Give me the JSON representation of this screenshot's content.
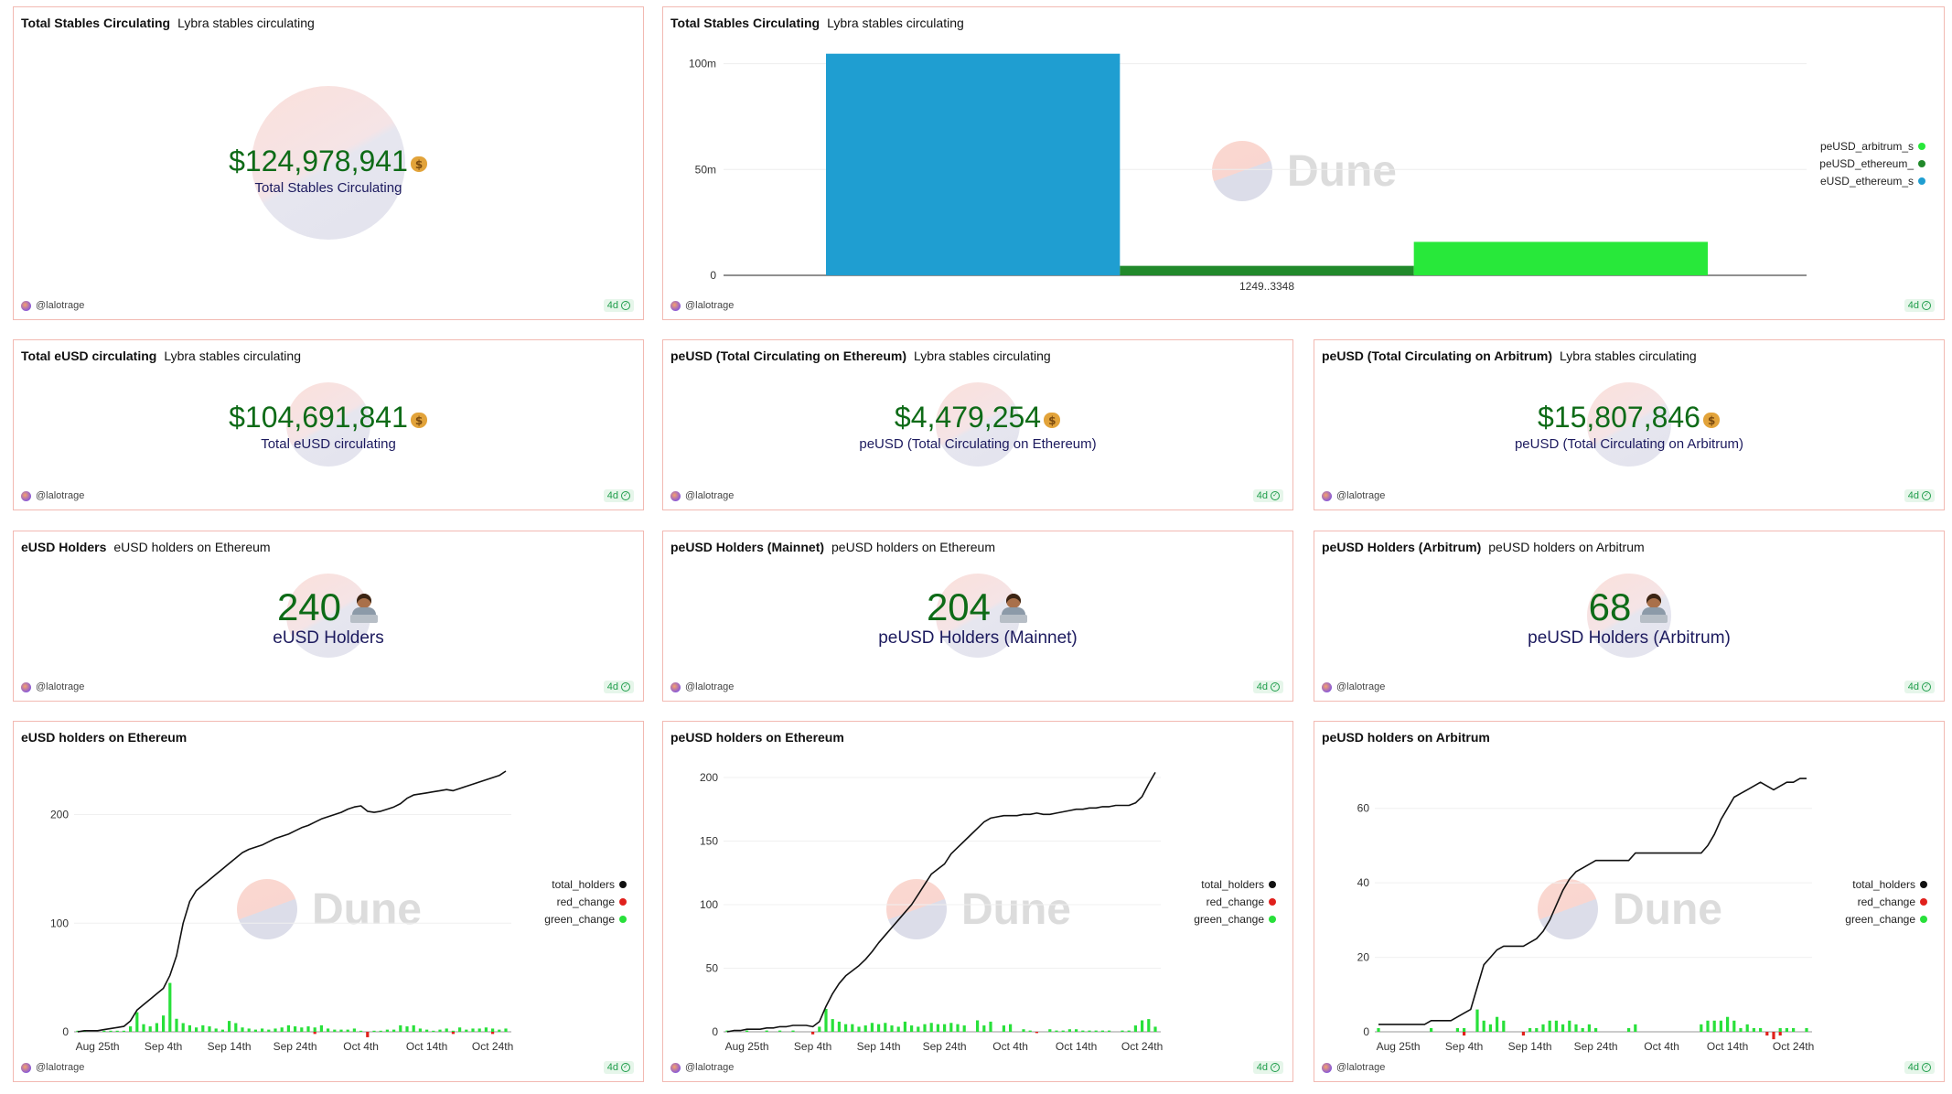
{
  "author": "@lalotrage",
  "freshness": "4d",
  "colors": {
    "green_value": "#0e6b17",
    "navy_label": "#1c1a5e",
    "card_border": "#f2b9b2",
    "line_black": "#111111",
    "bar_green": "#28e03a",
    "bar_red": "#e0201c",
    "eusd_blue": "#1f9ed1",
    "peusd_eth_green": "#21892b",
    "peusd_arb_green": "#28e83a"
  },
  "watermark": "Dune",
  "cards": {
    "total_stables": {
      "title": "Total Stables Circulating",
      "subtitle": "Lybra stables circulating",
      "value": "$124,978,941",
      "label": "Total Stables Circulating",
      "icon": "money-bag-icon"
    },
    "total_stables_bar": {
      "title": "Total Stables Circulating",
      "subtitle": "Lybra stables circulating"
    },
    "total_eusd": {
      "title": "Total eUSD circulating",
      "subtitle": "Lybra stables circulating",
      "value": "$104,691,841",
      "label": "Total eUSD circulating",
      "icon": "money-bag-icon"
    },
    "peusd_eth": {
      "title": "peUSD (Total Circulating on Ethereum)",
      "subtitle": "Lybra stables circulating",
      "value": "$4,479,254",
      "label": "peUSD (Total Circulating on Ethereum)",
      "icon": "money-bag-icon"
    },
    "peusd_arb": {
      "title": "peUSD (Total Circulating on Arbitrum)",
      "subtitle": "Lybra stables circulating",
      "value": "$15,807,846",
      "label": "peUSD (Total Circulating on Arbitrum)",
      "icon": "money-bag-icon"
    },
    "eusd_holders": {
      "title": "eUSD Holders",
      "subtitle": "eUSD holders on Ethereum",
      "value": "240",
      "label": "eUSD Holders",
      "icon": "technologist-icon"
    },
    "peusd_holders_mainnet": {
      "title": "peUSD Holders (Mainnet)",
      "subtitle": "peUSD holders on Ethereum",
      "value": "204",
      "label": "peUSD Holders (Mainnet)",
      "icon": "technologist-icon"
    },
    "peusd_holders_arb": {
      "title": "peUSD Holders (Arbitrum)",
      "subtitle": "peUSD holders on Arbitrum",
      "value": "68",
      "label": "peUSD Holders (Arbitrum)",
      "icon": "technologist-icon"
    },
    "eusd_chart": {
      "title": "eUSD holders on Ethereum"
    },
    "peusd_eth_chart": {
      "title": "peUSD holders on Ethereum"
    },
    "peusd_arb_chart": {
      "title": "peUSD holders on Arbitrum"
    }
  },
  "chart_data": [
    {
      "id": "stables_bar",
      "type": "bar",
      "title": "Total Stables Circulating",
      "categories": [
        "1249..3348"
      ],
      "ylim": [
        0,
        105000000
      ],
      "yticks": [
        0,
        50000000,
        100000000
      ],
      "ytick_labels": [
        "0",
        "50m",
        "100m"
      ],
      "xtick_labels": [
        "1249..3348"
      ],
      "grid": true,
      "legend": "right",
      "series": [
        {
          "name": "eUSD_ethereum_s",
          "values": [
            104691841
          ],
          "color": "#1f9ed1"
        },
        {
          "name": "peUSD_ethereum_",
          "values": [
            4479254
          ],
          "color": "#21892b"
        },
        {
          "name": "peUSD_arbitrum_s",
          "values": [
            15807846
          ],
          "color": "#28e83a"
        }
      ],
      "legend_order": [
        "peUSD_arbitrum_s",
        "peUSD_ethereum_",
        "eUSD_ethereum_s"
      ]
    },
    {
      "id": "eusd_holders",
      "type": "line",
      "title": "eUSD holders on Ethereum",
      "x_start": "Aug 22nd",
      "days": 66,
      "xticks": [
        {
          "day": 3,
          "label": "Aug 25th"
        },
        {
          "day": 13,
          "label": "Sep 4th"
        },
        {
          "day": 23,
          "label": "Sep 14th"
        },
        {
          "day": 33,
          "label": "Sep 24th"
        },
        {
          "day": 43,
          "label": "Oct 4th"
        },
        {
          "day": 53,
          "label": "Oct 14th"
        },
        {
          "day": 63,
          "label": "Oct 24th"
        }
      ],
      "ylim": [
        0,
        240
      ],
      "yticks": [
        0,
        100,
        200
      ],
      "grid": true,
      "legend": "right",
      "series": [
        {
          "name": "total_holders",
          "kind": "line",
          "color": "#111111",
          "values": [
            0,
            1,
            1,
            1,
            2,
            3,
            4,
            5,
            10,
            20,
            25,
            30,
            35,
            40,
            52,
            70,
            100,
            120,
            130,
            135,
            140,
            145,
            150,
            155,
            160,
            165,
            168,
            170,
            172,
            175,
            178,
            180,
            182,
            185,
            188,
            190,
            193,
            196,
            198,
            200,
            202,
            205,
            207,
            208,
            203,
            202,
            203,
            205,
            207,
            210,
            215,
            218,
            219,
            220,
            221,
            222,
            223,
            222,
            224,
            226,
            228,
            230,
            232,
            234,
            236,
            240
          ]
        },
        {
          "name": "red_change",
          "kind": "bar",
          "color": "#e0201c",
          "values": [
            0,
            0,
            0,
            0,
            0,
            0,
            0,
            0,
            0,
            0,
            0,
            0,
            0,
            0,
            0,
            0,
            0,
            0,
            0,
            0,
            0,
            0,
            0,
            0,
            0,
            0,
            0,
            0,
            0,
            0,
            0,
            0,
            0,
            0,
            0,
            0,
            -2,
            0,
            0,
            0,
            0,
            0,
            0,
            0,
            -5,
            0,
            0,
            0,
            0,
            0,
            0,
            0,
            0,
            0,
            0,
            0,
            0,
            -2,
            0,
            0,
            0,
            0,
            0,
            -2,
            0,
            0
          ]
        },
        {
          "name": "green_change",
          "kind": "bar",
          "color": "#28e03a",
          "values": [
            1,
            1,
            0,
            0,
            1,
            1,
            1,
            1,
            5,
            18,
            7,
            5,
            8,
            15,
            45,
            12,
            8,
            6,
            4,
            6,
            5,
            3,
            2,
            10,
            8,
            4,
            3,
            2,
            3,
            2,
            3,
            4,
            6,
            5,
            4,
            5,
            4,
            6,
            3,
            2,
            2,
            2,
            3,
            1,
            0,
            1,
            1,
            2,
            2,
            6,
            5,
            6,
            3,
            2,
            1,
            2,
            3,
            1,
            4,
            2,
            3,
            3,
            4,
            3,
            2,
            3
          ]
        }
      ]
    },
    {
      "id": "peusd_eth_holders",
      "type": "line",
      "title": "peUSD holders on Ethereum",
      "x_start": "Aug 22nd",
      "days": 66,
      "xticks": [
        {
          "day": 3,
          "label": "Aug 25th"
        },
        {
          "day": 13,
          "label": "Sep 4th"
        },
        {
          "day": 23,
          "label": "Sep 14th"
        },
        {
          "day": 33,
          "label": "Sep 24th"
        },
        {
          "day": 43,
          "label": "Oct 4th"
        },
        {
          "day": 53,
          "label": "Oct 14th"
        },
        {
          "day": 63,
          "label": "Oct 24th"
        }
      ],
      "ylim": [
        0,
        205
      ],
      "yticks": [
        0,
        50,
        100,
        150,
        200
      ],
      "grid": true,
      "legend": "right",
      "series": [
        {
          "name": "total_holders",
          "kind": "line",
          "color": "#111111",
          "values": [
            0,
            1,
            1,
            2,
            2,
            2,
            3,
            3,
            4,
            4,
            5,
            5,
            5,
            4,
            8,
            20,
            30,
            38,
            44,
            48,
            52,
            57,
            63,
            70,
            76,
            82,
            88,
            94,
            100,
            108,
            116,
            124,
            128,
            132,
            140,
            145,
            150,
            155,
            160,
            165,
            168,
            169,
            170,
            170,
            170,
            171,
            171,
            172,
            171,
            171,
            172,
            173,
            174,
            175,
            175,
            176,
            176,
            177,
            177,
            178,
            178,
            178,
            180,
            185,
            195,
            204
          ]
        },
        {
          "name": "red_change",
          "kind": "bar",
          "color": "#e0201c",
          "values": [
            0,
            0,
            0,
            0,
            0,
            0,
            0,
            0,
            0,
            0,
            0,
            0,
            0,
            -2,
            0,
            0,
            0,
            0,
            0,
            0,
            0,
            0,
            0,
            0,
            0,
            0,
            0,
            0,
            0,
            0,
            0,
            0,
            0,
            0,
            0,
            0,
            0,
            0,
            0,
            0,
            0,
            0,
            0,
            0,
            0,
            0,
            0,
            -1,
            0,
            0,
            0,
            0,
            0,
            0,
            0,
            0,
            0,
            0,
            0,
            0,
            0,
            0,
            0,
            0,
            0,
            0
          ]
        },
        {
          "name": "green_change",
          "kind": "bar",
          "color": "#28e03a",
          "values": [
            1,
            0,
            0,
            1,
            0,
            0,
            1,
            0,
            1,
            0,
            1,
            0,
            0,
            0,
            4,
            18,
            10,
            8,
            6,
            6,
            4,
            5,
            7,
            6,
            7,
            5,
            4,
            8,
            5,
            4,
            6,
            7,
            6,
            6,
            7,
            6,
            5,
            0,
            9,
            5,
            8,
            0,
            5,
            6,
            0,
            2,
            1,
            0,
            0,
            2,
            1,
            1,
            2,
            2,
            1,
            1,
            1,
            1,
            1,
            0,
            1,
            1,
            5,
            9,
            10,
            4
          ]
        }
      ]
    },
    {
      "id": "peusd_arb_holders",
      "type": "line",
      "title": "peUSD holders on Arbitrum",
      "x_start": "Aug 22nd",
      "days": 66,
      "xticks": [
        {
          "day": 3,
          "label": "Aug 25th"
        },
        {
          "day": 13,
          "label": "Sep 4th"
        },
        {
          "day": 23,
          "label": "Sep 14th"
        },
        {
          "day": 33,
          "label": "Sep 24th"
        },
        {
          "day": 43,
          "label": "Oct 4th"
        },
        {
          "day": 53,
          "label": "Oct 14th"
        },
        {
          "day": 63,
          "label": "Oct 24th"
        }
      ],
      "ylim": [
        0,
        70
      ],
      "yticks": [
        0,
        20,
        40,
        60
      ],
      "grid": true,
      "legend": "right",
      "series": [
        {
          "name": "total_holders",
          "kind": "line",
          "color": "#111111",
          "values": [
            2,
            2,
            2,
            2,
            2,
            2,
            2,
            2,
            3,
            3,
            3,
            3,
            4,
            5,
            6,
            12,
            18,
            20,
            22,
            23,
            23,
            23,
            23,
            24,
            25,
            27,
            30,
            34,
            38,
            41,
            43,
            44,
            45,
            46,
            46,
            46,
            46,
            46,
            46,
            48,
            48,
            48,
            48,
            48,
            48,
            48,
            48,
            48,
            48,
            48,
            50,
            53,
            57,
            60,
            63,
            64,
            65,
            66,
            67,
            66,
            65,
            66,
            67,
            67,
            68,
            68
          ]
        },
        {
          "name": "red_change",
          "kind": "bar",
          "color": "#e0201c",
          "values": [
            0,
            0,
            0,
            0,
            0,
            0,
            0,
            0,
            0,
            0,
            0,
            0,
            0,
            -1,
            0,
            0,
            0,
            0,
            0,
            0,
            0,
            0,
            -1,
            0,
            0,
            0,
            0,
            0,
            0,
            0,
            0,
            0,
            0,
            0,
            0,
            0,
            0,
            0,
            0,
            0,
            0,
            0,
            0,
            0,
            0,
            0,
            0,
            0,
            0,
            0,
            0,
            0,
            0,
            0,
            0,
            0,
            0,
            0,
            0,
            -1,
            -2,
            -1,
            0,
            0,
            0,
            0
          ]
        },
        {
          "name": "green_change",
          "kind": "bar",
          "color": "#28e03a",
          "values": [
            1,
            0,
            0,
            0,
            0,
            0,
            0,
            0,
            1,
            0,
            0,
            0,
            1,
            1,
            0,
            6,
            3,
            2,
            4,
            3,
            0,
            0,
            0,
            1,
            1,
            2,
            3,
            3,
            2,
            3,
            2,
            1,
            2,
            1,
            0,
            0,
            0,
            0,
            1,
            2,
            0,
            0,
            0,
            0,
            0,
            0,
            0,
            0,
            0,
            2,
            3,
            3,
            3,
            4,
            3,
            1,
            2,
            1,
            1,
            0,
            0,
            1,
            1,
            1,
            0,
            1
          ]
        }
      ]
    }
  ]
}
